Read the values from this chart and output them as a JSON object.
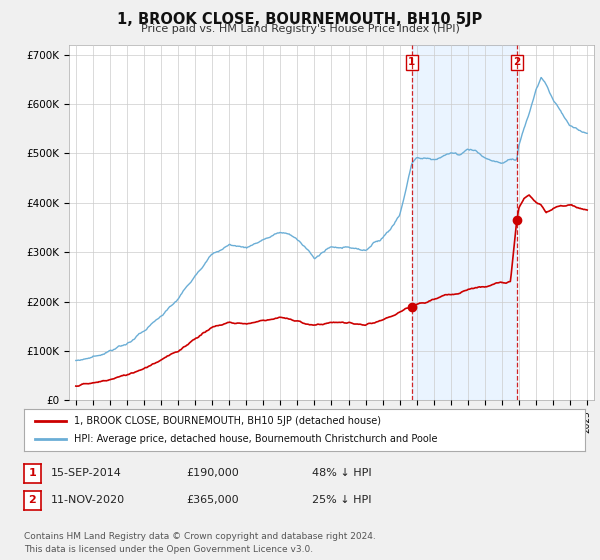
{
  "title": "1, BROOK CLOSE, BOURNEMOUTH, BH10 5JP",
  "subtitle": "Price paid vs. HM Land Registry's House Price Index (HPI)",
  "ylabel_ticks": [
    "£0",
    "£100K",
    "£200K",
    "£300K",
    "£400K",
    "£500K",
    "£600K",
    "£700K"
  ],
  "ytick_values": [
    0,
    100000,
    200000,
    300000,
    400000,
    500000,
    600000,
    700000
  ],
  "ylim": [
    0,
    720000
  ],
  "hpi_color": "#6baed6",
  "price_color": "#cc0000",
  "vline_color": "#cc0000",
  "shade_color": "#ddeeff",
  "sale1_x": 2014.71,
  "sale1_price": 190000,
  "sale2_x": 2020.87,
  "sale2_price": 365000,
  "legend1": "1, BROOK CLOSE, BOURNEMOUTH, BH10 5JP (detached house)",
  "legend2": "HPI: Average price, detached house, Bournemouth Christchurch and Poole",
  "sale1_text": "15-SEP-2014",
  "sale1_amount": "£190,000",
  "sale1_pct": "48% ↓ HPI",
  "sale2_text": "11-NOV-2020",
  "sale2_amount": "£365,000",
  "sale2_pct": "25% ↓ HPI",
  "footer": "Contains HM Land Registry data © Crown copyright and database right 2024.\nThis data is licensed under the Open Government Licence v3.0.",
  "background_color": "#f0f0f0",
  "plot_bg_color": "#ffffff",
  "grid_color": "#cccccc"
}
